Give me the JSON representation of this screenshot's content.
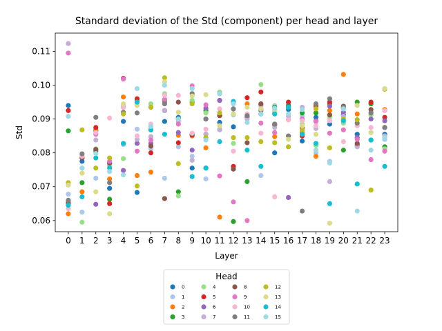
{
  "chart_data": {
    "type": "scatter",
    "title": "Standard deviation of the Std (component) per head and layer",
    "xlabel": "Layer",
    "ylabel": "Std",
    "x": [
      0,
      1,
      2,
      3,
      4,
      5,
      6,
      7,
      8,
      9,
      10,
      11,
      12,
      13,
      14,
      15,
      16,
      17,
      18,
      19,
      20,
      21,
      22,
      23
    ],
    "xlim": [
      -0.95,
      23.95
    ],
    "ylim": [
      0.0567,
      0.1154
    ],
    "yticks": [
      0.06,
      0.07,
      0.08,
      0.09,
      0.1,
      0.11
    ],
    "ytick_labels": [
      "0.06",
      "0.07",
      "0.08",
      "0.09",
      "0.10",
      "0.11"
    ],
    "legend": {
      "title": "Head",
      "position": "lower center, below plot",
      "columns": 4
    },
    "series": [
      {
        "name": "0",
        "color": "#1f77b4",
        "values": [
          0.094,
          0.0775,
          0.0865,
          0.0695,
          0.0893,
          0.0683,
          0.0868,
          0.0893,
          0.0905,
          0.0755,
          0.0755,
          0.089,
          0.0877,
          0.0908,
          0.0915,
          0.08,
          0.0928,
          0.0835,
          0.0905,
          0.0885,
          0.0912,
          0.0855,
          0.0838,
          0.0855
        ]
      },
      {
        "name": "1",
        "color": "#aec7e8",
        "values": [
          0.0678,
          0.0625,
          0.0725,
          0.0712,
          0.0825,
          0.087,
          0.0812,
          0.0725,
          0.0818,
          0.079,
          0.0723,
          0.087,
          0.0912,
          0.0908,
          0.0733,
          0.094,
          0.0938,
          0.0908,
          0.08,
          0.0775,
          0.0888,
          0.0828,
          0.086,
          0.084
        ]
      },
      {
        "name": "2",
        "color": "#ff7f0e",
        "values": [
          0.062,
          0.0685,
          0.0868,
          0.0723,
          0.0965,
          0.0733,
          0.0743,
          0.095,
          0.0852,
          0.085,
          0.0815,
          0.061,
          0.0948,
          0.0945,
          0.0945,
          0.0848,
          0.0948,
          0.086,
          0.079,
          0.0925,
          0.1032,
          0.0915,
          0.0945,
          0.0928
        ]
      },
      {
        "name": "3",
        "color": "#2ca02c",
        "values": [
          0.0865,
          0.0712,
          0.0805,
          0.0663,
          0.102,
          0.0955,
          0.0935,
          0.0955,
          0.0685,
          0.095,
          0.0925,
          0.0955,
          0.0597,
          0.0715,
          0.094,
          0.0935,
          0.0935,
          0.0918,
          0.0918,
          0.0945,
          0.0808,
          0.095,
          0.0945,
          0.0818
        ]
      },
      {
        "name": "4",
        "color": "#98df8a",
        "values": [
          0.0705,
          0.0595,
          0.0812,
          0.0762,
          0.0783,
          0.0952,
          0.0945,
          0.0975,
          0.0673,
          0.0955,
          0.0918,
          0.098,
          0.0828,
          0.0905,
          0.1002,
          0.0928,
          0.0948,
          0.0885,
          0.0822,
          0.0905,
          0.0888,
          0.0845,
          0.0912,
          0.0812
        ]
      },
      {
        "name": "5",
        "color": "#d62728",
        "values": [
          0.0925,
          0.0785,
          0.0875,
          0.065,
          0.102,
          0.096,
          0.08,
          0.0925,
          0.083,
          0.0853,
          0.0855,
          0.091,
          0.076,
          0.0963,
          0.098,
          0.0883,
          0.095,
          0.085,
          0.0938,
          0.095,
          0.0932,
          0.0823,
          0.095,
          0.0905
        ]
      },
      {
        "name": "6",
        "color": "#9467bd",
        "values": [
          0.0655,
          0.0788,
          0.0648,
          0.077,
          0.0748,
          0.0828,
          0.0828,
          0.0925,
          0.086,
          0.0808,
          0.0932,
          0.0955,
          0.093,
          0.0905,
          0.0925,
          0.092,
          0.0668,
          0.087,
          0.0895,
          0.0938,
          0.092,
          0.0845,
          0.09,
          0.0895
        ]
      },
      {
        "name": "7",
        "color": "#c5b0d5",
        "values": [
          0.1123,
          0.0755,
          0.0838,
          0.0768,
          0.0938,
          0.084,
          0.0848,
          0.0925,
          0.0893,
          0.0778,
          0.0855,
          0.0868,
          0.0915,
          0.09,
          0.094,
          0.0875,
          0.0908,
          0.0935,
          0.0872,
          0.0715,
          0.0908,
          0.0818,
          0.092,
          0.085
        ]
      },
      {
        "name": "8",
        "color": "#8c564b",
        "values": [
          0.065,
          0.0785,
          0.081,
          0.077,
          0.0935,
          0.095,
          0.082,
          0.0665,
          0.095,
          0.0855,
          0.09,
          0.091,
          0.0752,
          0.083,
          0.0945,
          0.0885,
          0.094,
          0.0875,
          0.094,
          0.0912,
          0.0938,
          0.0828,
          0.0928,
          0.0875
        ]
      },
      {
        "name": "9",
        "color": "#e377c2",
        "values": [
          0.1095,
          0.079,
          0.0855,
          0.0775,
          0.1018,
          0.0805,
          0.0838,
          0.0958,
          0.0885,
          0.0998,
          0.0942,
          0.0732,
          0.0655,
          0.06,
          0.0888,
          0.086,
          0.0898,
          0.09,
          0.0893,
          0.0858,
          0.0868,
          0.084,
          0.078,
          0.0805
        ]
      },
      {
        "name": "10",
        "color": "#f7b6d2",
        "values": [
          0.0635,
          0.079,
          0.086,
          0.0903,
          0.0935,
          0.085,
          0.0885,
          0.097,
          0.097,
          0.0858,
          0.087,
          0.093,
          0.0805,
          0.0915,
          0.0858,
          0.067,
          0.0898,
          0.0895,
          0.088,
          0.0895,
          0.0833,
          0.088,
          0.0875,
          0.0925
        ]
      },
      {
        "name": "11",
        "color": "#7f7f7f",
        "values": [
          0.066,
          0.0797,
          0.0905,
          0.0712,
          0.092,
          0.0918,
          0.0878,
          0.0945,
          0.09,
          0.0975,
          0.09,
          0.0975,
          0.093,
          0.091,
          0.093,
          0.0885,
          0.085,
          0.0628,
          0.0945,
          0.096,
          0.0935,
          0.0888,
          0.0918,
          0.0875
        ]
      },
      {
        "name": "12",
        "color": "#bcbd22",
        "values": [
          0.0712,
          0.0868,
          0.0755,
          0.0785,
          0.0915,
          0.0702,
          0.0935,
          0.1022,
          0.0768,
          0.0945,
          0.0845,
          0.0918,
          0.0845,
          0.0845,
          0.0833,
          0.083,
          0.0818,
          0.0868,
          0.093,
          0.0815,
          0.09,
          0.0898,
          0.069,
          0.0988
        ]
      },
      {
        "name": "13",
        "color": "#dbdb8d",
        "values": [
          0.0705,
          0.074,
          0.0685,
          0.062,
          0.0945,
          0.094,
          0.088,
          0.101,
          0.092,
          0.0968,
          0.0972,
          0.088,
          0.0915,
          0.0935,
          0.093,
          0.0922,
          0.084,
          0.088,
          0.0855,
          0.0592,
          0.093,
          0.094,
          0.086,
          0.099
        ]
      },
      {
        "name": "14",
        "color": "#17becf",
        "values": [
          0.0645,
          0.067,
          0.0785,
          0.0755,
          0.0828,
          0.095,
          0.0868,
          0.0855,
          0.09,
          0.073,
          0.0755,
          0.0833,
          0.0952,
          0.0808,
          0.076,
          0.0915,
          0.0935,
          0.0855,
          0.0828,
          0.065,
          0.0895,
          0.0708,
          0.0838,
          0.076
        ]
      },
      {
        "name": "15",
        "color": "#9edae5",
        "values": [
          0.0908,
          0.0755,
          0.0798,
          0.0745,
          0.0735,
          0.099,
          0.0878,
          0.1,
          0.09,
          0.099,
          0.0838,
          0.0975,
          0.0945,
          0.089,
          0.0915,
          0.0932,
          0.0915,
          0.0928,
          0.0808,
          0.077,
          0.093,
          0.0628,
          0.0808,
          0.0845
        ]
      }
    ]
  }
}
